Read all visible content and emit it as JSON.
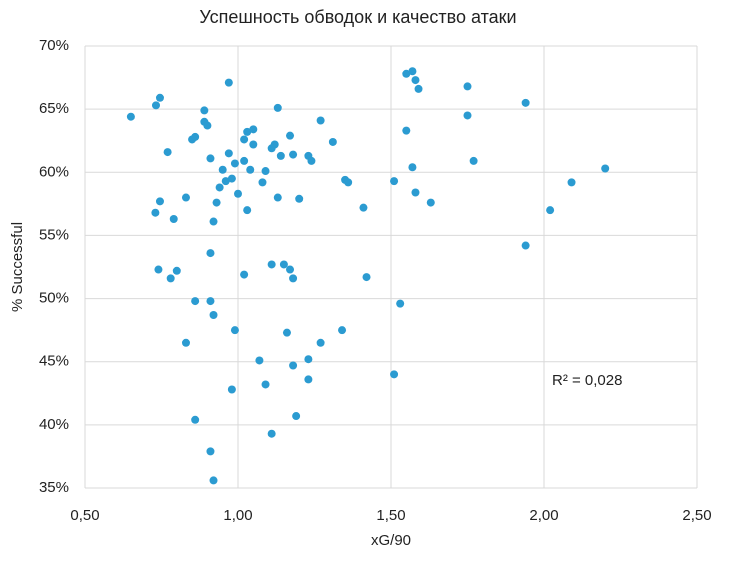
{
  "chart_data": {
    "type": "scatter",
    "title": "Успешность обводок и качество атаки",
    "x_label": "xG/90",
    "y_label": "% Successful",
    "annotation": "R² = 0,028",
    "color": "#2b9bd1",
    "grid": true,
    "xlim": [
      0.5,
      2.5
    ],
    "xticks": [
      {
        "value": 0.5,
        "label": "0,50"
      },
      {
        "value": 1.0,
        "label": "1,00"
      },
      {
        "value": 1.5,
        "label": "1,50"
      },
      {
        "value": 2.0,
        "label": "2,00"
      },
      {
        "value": 2.5,
        "label": "2,50"
      }
    ],
    "ylim": [
      35,
      70
    ],
    "yticks": [
      {
        "value": 35,
        "label": "35%"
      },
      {
        "value": 40,
        "label": "40%"
      },
      {
        "value": 45,
        "label": "45%"
      },
      {
        "value": 50,
        "label": "50%"
      },
      {
        "value": 55,
        "label": "55%"
      },
      {
        "value": 60,
        "label": "60%"
      },
      {
        "value": 65,
        "label": "65%"
      },
      {
        "value": 70,
        "label": "70%"
      }
    ],
    "x": [
      0.65,
      0.745,
      0.732,
      0.97,
      0.89,
      0.89,
      0.9,
      0.77,
      0.85,
      0.86,
      1.13,
      1.27,
      1.03,
      1.05,
      1.02,
      1.05,
      1.17,
      1.12,
      1.11,
      1.31,
      0.97,
      0.91,
      1.14,
      1.18,
      1.23,
      1.24,
      1.02,
      0.99,
      0.95,
      1.04,
      1.09,
      0.96,
      0.98,
      1.08,
      0.94,
      1.0,
      0.83,
      0.745,
      0.93,
      1.13,
      1.2,
      1.03,
      0.73,
      0.79,
      0.92,
      1.35,
      1.36,
      1.41,
      0.91,
      0.74,
      0.8,
      0.78,
      1.02,
      1.11,
      1.15,
      1.17,
      1.18,
      1.42,
      0.86,
      0.91,
      0.92,
      0.99,
      1.16,
      1.34,
      1.27,
      0.83,
      1.07,
      1.23,
      1.18,
      1.09,
      1.23,
      0.98,
      0.86,
      1.19,
      1.11,
      0.91,
      0.92,
      1.51,
      1.53,
      1.51,
      1.55,
      1.57,
      1.58,
      1.59,
      1.55,
      1.57,
      1.58,
      1.63,
      1.75,
      1.75,
      1.77,
      1.94,
      1.94,
      2.02,
      2.09,
      2.2
    ],
    "values": [
      64.4,
      65.9,
      65.3,
      67.1,
      64.9,
      64.0,
      63.7,
      61.6,
      62.6,
      62.8,
      65.1,
      64.1,
      63.2,
      63.4,
      62.6,
      62.2,
      62.9,
      62.2,
      61.9,
      62.4,
      61.5,
      61.1,
      61.3,
      61.4,
      61.3,
      60.9,
      60.9,
      60.7,
      60.2,
      60.2,
      60.1,
      59.3,
      59.5,
      59.2,
      58.8,
      58.3,
      58.0,
      57.7,
      57.6,
      58.0,
      57.9,
      57.0,
      56.8,
      56.3,
      56.1,
      59.4,
      59.2,
      57.2,
      53.6,
      52.3,
      52.2,
      51.6,
      51.9,
      52.7,
      52.7,
      52.3,
      51.6,
      51.7,
      49.8,
      49.8,
      48.7,
      47.5,
      47.3,
      47.5,
      46.5,
      46.5,
      45.1,
      45.2,
      44.7,
      43.2,
      43.6,
      42.8,
      40.4,
      40.7,
      39.3,
      37.9,
      35.6,
      44.0,
      49.6,
      59.3,
      67.8,
      68.0,
      67.3,
      66.6,
      63.3,
      60.4,
      58.4,
      57.6,
      66.8,
      64.5,
      60.9,
      65.5,
      54.2,
      57.0,
      59.2,
      60.3
    ]
  }
}
